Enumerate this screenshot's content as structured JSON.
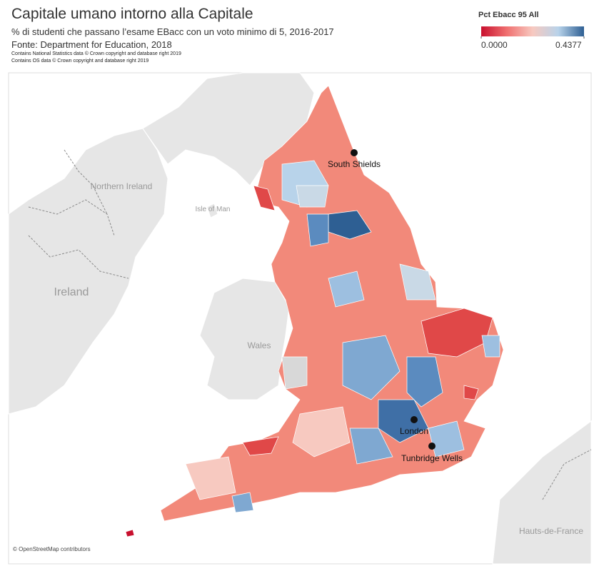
{
  "header": {
    "title": "Capitale umano intorno alla Capitale",
    "subtitle": "% di studenti che passano l’esame EBacc con un voto minimo di 5, 2016-2017",
    "source": "Fonte: Department for Education, 2018",
    "credits": [
      "Contains National Statistics data © Crown copyright and database right 2019",
      "Contains OS data © Crown copyright and database right 2019"
    ]
  },
  "legend": {
    "title": "Pct Ebacc 95 All",
    "min": {
      "value": 0,
      "label": "0.0000"
    },
    "max": 0.4377,
    "colors": [
      "#c8102e",
      "#f07070",
      "#f7c9c0",
      "#b8d3ea",
      "#2e5f93"
    ]
  },
  "map": {
    "places": [
      "South Shields",
      "London",
      "Tunbridge Wells"
    ],
    "regions": [
      "Northern Ireland",
      "Ireland",
      "Isle of Man",
      "Wales",
      "Hauts-de-France"
    ],
    "attribution": "© OpenStreetMap contributors"
  }
}
